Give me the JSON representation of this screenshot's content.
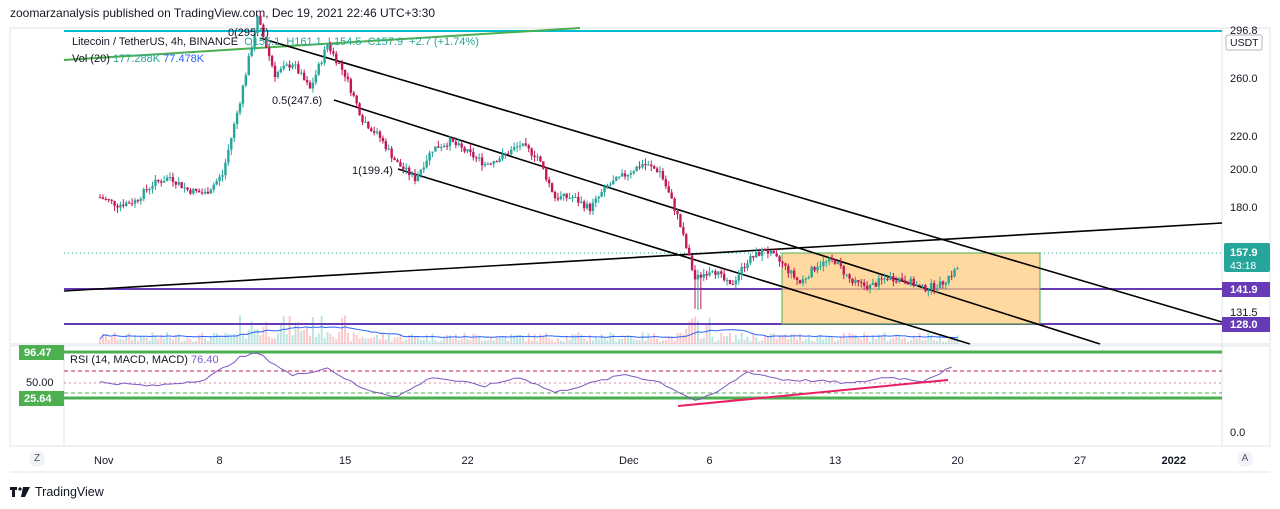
{
  "header": {
    "publisher": "zoomarzanalysis published on TradingView.com, Dec 19, 2021 22:46 UTC+3:30"
  },
  "footer": {
    "brand": "TradingView"
  },
  "legend": {
    "symbol": "Litecoin / TetherUS, 4h, BINANCE",
    "ohlc": {
      "o": "O155.1",
      "h": "H161.1",
      "l": "L154.5",
      "c": "C157.9",
      "chg": "+2.7 (+1.74%)"
    },
    "vol_label": "Vol (20)",
    "vol_value": "177.288K",
    "vol_ma": "77.478K",
    "rsi_label": "RSI (14, MACD, MACD)",
    "rsi_value": "76.40"
  },
  "axis": {
    "currency": "USDT",
    "corner_left": "Z",
    "corner_right": "A"
  },
  "chart_data": {
    "type": "candlestick",
    "symbol": "LTCUSDT",
    "timeframe": "4h",
    "price_ticks": [
      260.0,
      220.0,
      200.0,
      180.0,
      131.5
    ],
    "price_tick_labels": [
      "260.0",
      "220.0",
      "200.0",
      "180.0",
      "131.5"
    ],
    "price_top_label": "296.8",
    "last_price": "157.9",
    "countdown": "43:18",
    "levels": [
      {
        "price": 141.9,
        "label": "141.9",
        "color": "#673ab7"
      },
      {
        "price": 128.0,
        "label": "128.0",
        "color": "#673ab7"
      }
    ],
    "fib": [
      {
        "label": "0(295.7)",
        "price": 295.7
      },
      {
        "label": "0.5(247.6)",
        "price": 247.6
      },
      {
        "label": "1(199.4)",
        "price": 199.4
      }
    ],
    "x_ticks": [
      "Nov",
      "8",
      "15",
      "22",
      "Dec",
      "6",
      "13",
      "20",
      "27",
      "2022"
    ],
    "x_tick_days": [
      0,
      7,
      14,
      21,
      30,
      35,
      42,
      49,
      56,
      61
    ],
    "close_path": [
      [
        0,
        196
      ],
      [
        1,
        192
      ],
      [
        2,
        194
      ],
      [
        3,
        203
      ],
      [
        4,
        207
      ],
      [
        5,
        200
      ],
      [
        6,
        198
      ],
      [
        7,
        208
      ],
      [
        8,
        248
      ],
      [
        9,
        292
      ],
      [
        10,
        262
      ],
      [
        11,
        268
      ],
      [
        12,
        254
      ],
      [
        13,
        278
      ],
      [
        14,
        262
      ],
      [
        15,
        238
      ],
      [
        16,
        228
      ],
      [
        17,
        214
      ],
      [
        18,
        206
      ],
      [
        19,
        222
      ],
      [
        20,
        226
      ],
      [
        21,
        220
      ],
      [
        22,
        214
      ],
      [
        23,
        218
      ],
      [
        24,
        224
      ],
      [
        25,
        218
      ],
      [
        26,
        196
      ],
      [
        27,
        196
      ],
      [
        28,
        190
      ],
      [
        29,
        202
      ],
      [
        30,
        208
      ],
      [
        31,
        214
      ],
      [
        32,
        210
      ],
      [
        33,
        186
      ],
      [
        34,
        152
      ],
      [
        35,
        158
      ],
      [
        36,
        148
      ],
      [
        37,
        162
      ],
      [
        38,
        168
      ],
      [
        39,
        160
      ],
      [
        40,
        150
      ],
      [
        41,
        160
      ],
      [
        42,
        162
      ],
      [
        43,
        150
      ],
      [
        44,
        148
      ],
      [
        45,
        153
      ],
      [
        46,
        152
      ],
      [
        47,
        147
      ],
      [
        48,
        149
      ],
      [
        49,
        157.9
      ]
    ],
    "rsi_ticks": [
      "96.47",
      "50.00",
      "25.64"
    ],
    "rsi_bottom": "0.0",
    "rsi_path": [
      [
        0,
        50
      ],
      [
        3,
        44
      ],
      [
        6,
        54
      ],
      [
        8,
        88
      ],
      [
        9,
        95
      ],
      [
        11,
        60
      ],
      [
        13,
        72
      ],
      [
        15,
        40
      ],
      [
        17,
        28
      ],
      [
        19,
        58
      ],
      [
        22,
        44
      ],
      [
        24,
        58
      ],
      [
        26,
        34
      ],
      [
        28,
        48
      ],
      [
        30,
        62
      ],
      [
        32,
        50
      ],
      [
        34,
        22
      ],
      [
        35,
        30
      ],
      [
        37,
        66
      ],
      [
        39,
        54
      ],
      [
        41,
        52
      ],
      [
        43,
        48
      ],
      [
        45,
        58
      ],
      [
        47,
        52
      ],
      [
        49,
        76.4
      ]
    ],
    "x_max": 63
  }
}
